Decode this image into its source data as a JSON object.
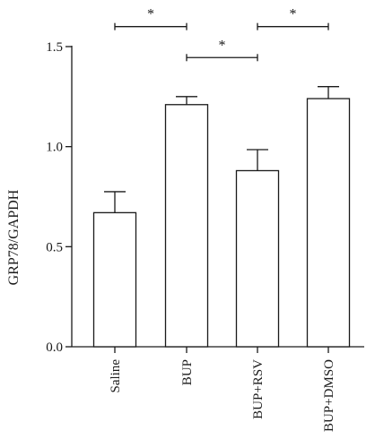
{
  "chart_data": {
    "type": "bar",
    "title": "",
    "ylabel": "GRP78/GAPDH",
    "xlabel": "",
    "ylim": [
      0,
      1.5
    ],
    "yticks": [
      0.0,
      0.5,
      1.0,
      1.5
    ],
    "ytick_labels": [
      "0.0",
      "0.5",
      "1.0",
      "1.5"
    ],
    "categories": [
      "Saline",
      "BUP",
      "BUP+RSV",
      "BUP+DMSO"
    ],
    "values": [
      0.67,
      1.21,
      0.88,
      1.24
    ],
    "errors": [
      0.105,
      0.04,
      0.105,
      0.06
    ],
    "grid": false,
    "significance": [
      {
        "from": 0,
        "to": 1,
        "label": "*",
        "y": 1.6
      },
      {
        "from": 1,
        "to": 2,
        "label": "*",
        "y": 1.445
      },
      {
        "from": 2,
        "to": 3,
        "label": "*",
        "y": 1.6
      }
    ]
  }
}
